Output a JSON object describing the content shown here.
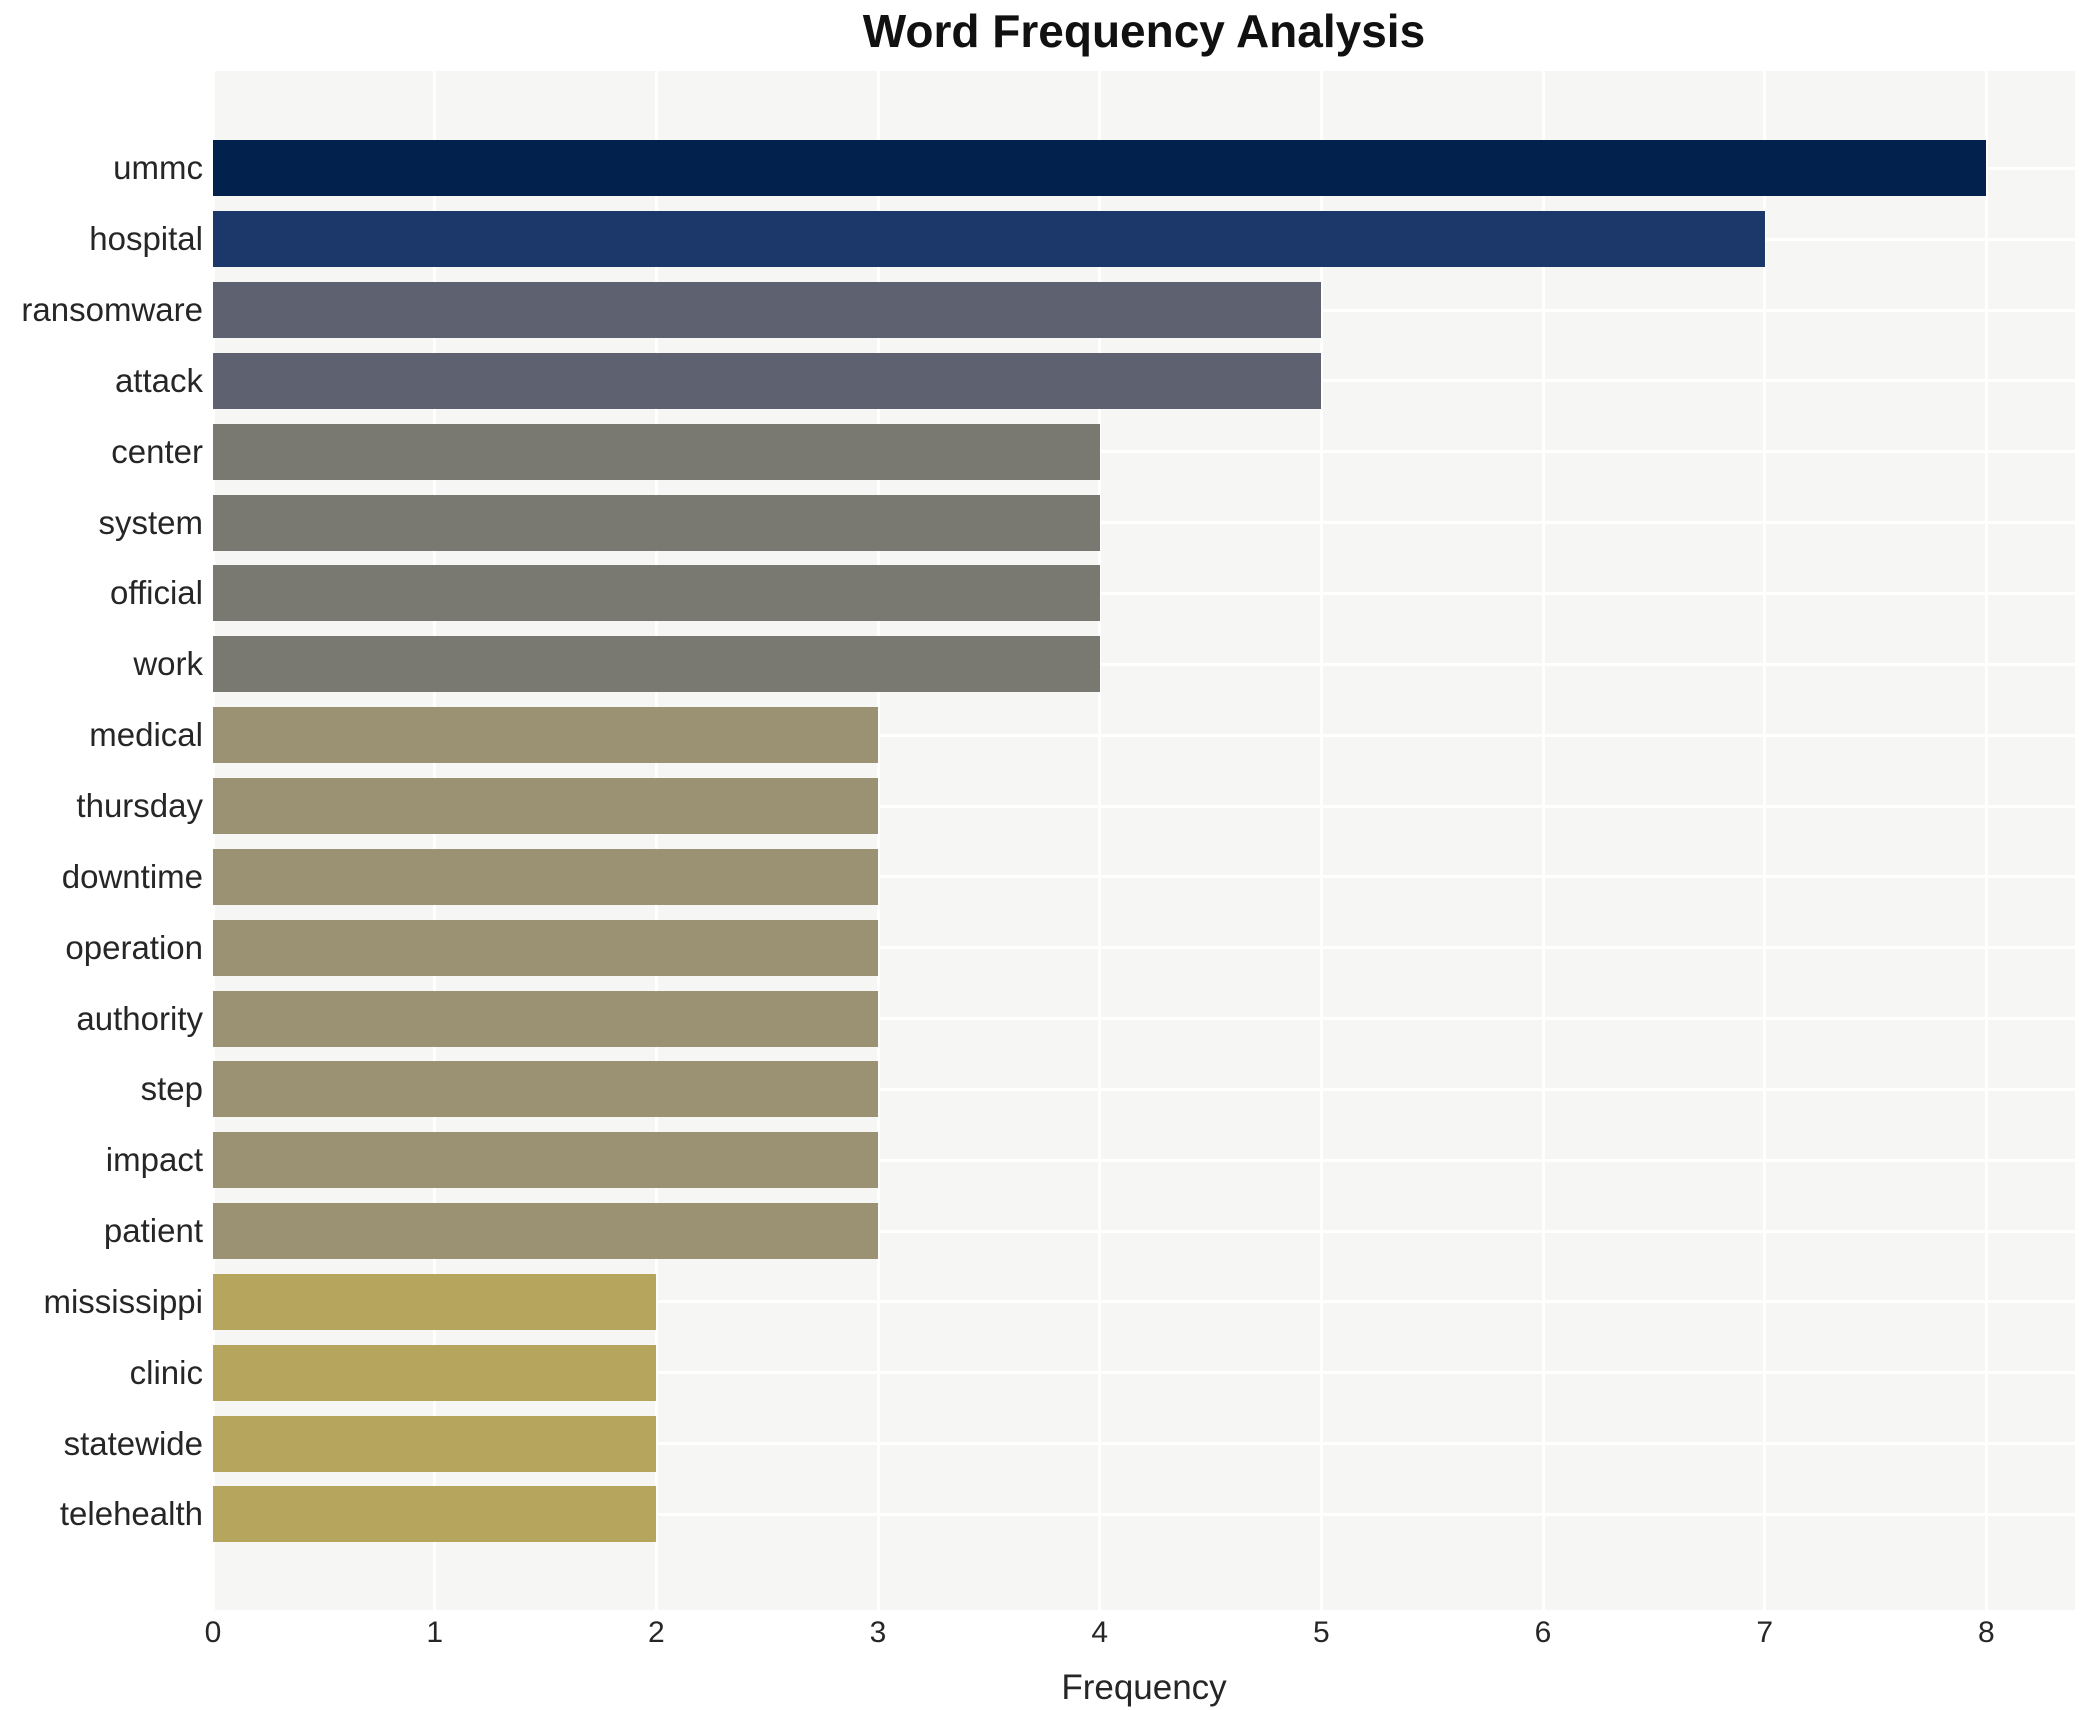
{
  "chart_data": {
    "type": "bar",
    "orientation": "horizontal",
    "title": "Word Frequency Analysis",
    "xlabel": "Frequency",
    "ylabel": "",
    "categories": [
      "ummc",
      "hospital",
      "ransomware",
      "attack",
      "center",
      "system",
      "official",
      "work",
      "medical",
      "thursday",
      "downtime",
      "operation",
      "authority",
      "step",
      "impact",
      "patient",
      "mississippi",
      "clinic",
      "statewide",
      "telehealth"
    ],
    "values": [
      8,
      7,
      5,
      5,
      4,
      4,
      4,
      4,
      3,
      3,
      3,
      3,
      3,
      3,
      3,
      3,
      2,
      2,
      2,
      2
    ],
    "bar_colors": [
      "#02224d",
      "#1c386b",
      "#5e6270",
      "#5e6270",
      "#7a7971",
      "#7a7971",
      "#7a7971",
      "#7a7971",
      "#9b9274",
      "#9b9274",
      "#9b9274",
      "#9b9274",
      "#9b9274",
      "#9b9274",
      "#9b9274",
      "#9b9274",
      "#b5a55d",
      "#b5a55d",
      "#b5a55d",
      "#b5a55d"
    ],
    "xticks": [
      0,
      1,
      2,
      3,
      4,
      5,
      6,
      7,
      8
    ],
    "xlim": [
      0,
      8.4
    ],
    "grid": true,
    "legend": false,
    "plot_bg_color": "#f6f6f4",
    "grid_color": "#ffffff",
    "text_color": "#262626",
    "title_color": "#111111"
  }
}
